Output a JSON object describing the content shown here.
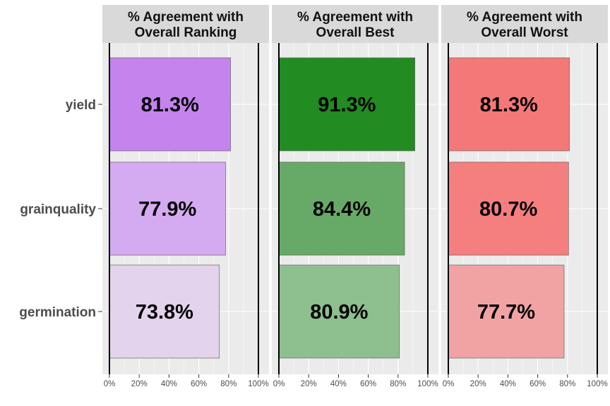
{
  "chart_data": {
    "type": "bar",
    "orientation": "horizontal",
    "categories": [
      "yield",
      "grainquality",
      "germination"
    ],
    "xlim": [
      0,
      100
    ],
    "x_ticks": [
      0,
      20,
      40,
      60,
      80,
      100
    ],
    "x_tick_labels": [
      "0%",
      "20%",
      "40%",
      "60%",
      "80%",
      "100%"
    ],
    "grid": true,
    "legend": "none",
    "panels": [
      {
        "title_lines": [
          "% Agreement with",
          "Overall Ranking"
        ],
        "values": [
          81.3,
          77.9,
          73.8
        ],
        "labels": [
          "81.3%",
          "77.9%",
          "73.8%"
        ],
        "colors": [
          "#c583ee",
          "#d4aaf0",
          "#e3d3ec"
        ]
      },
      {
        "title_lines": [
          "% Agreement with",
          "Overall Best"
        ],
        "values": [
          91.3,
          84.4,
          80.9
        ],
        "labels": [
          "91.3%",
          "84.4%",
          "80.9%"
        ],
        "colors": [
          "#228b22",
          "#67aa67",
          "#8ebf8e"
        ]
      },
      {
        "title_lines": [
          "% Agreement with",
          "Overall Worst"
        ],
        "values": [
          81.3,
          80.7,
          77.7
        ],
        "labels": [
          "81.3%",
          "80.7%",
          "77.7%"
        ],
        "colors": [
          "#f57878",
          "#f57f7f",
          "#f1a3a3"
        ]
      }
    ]
  },
  "colors": {
    "panel_background": "#ebebeb",
    "grid_line": "#ffffff",
    "strip_background": "#d9d9d9",
    "bar_outline": "#666666",
    "reference_line": "#000000"
  }
}
